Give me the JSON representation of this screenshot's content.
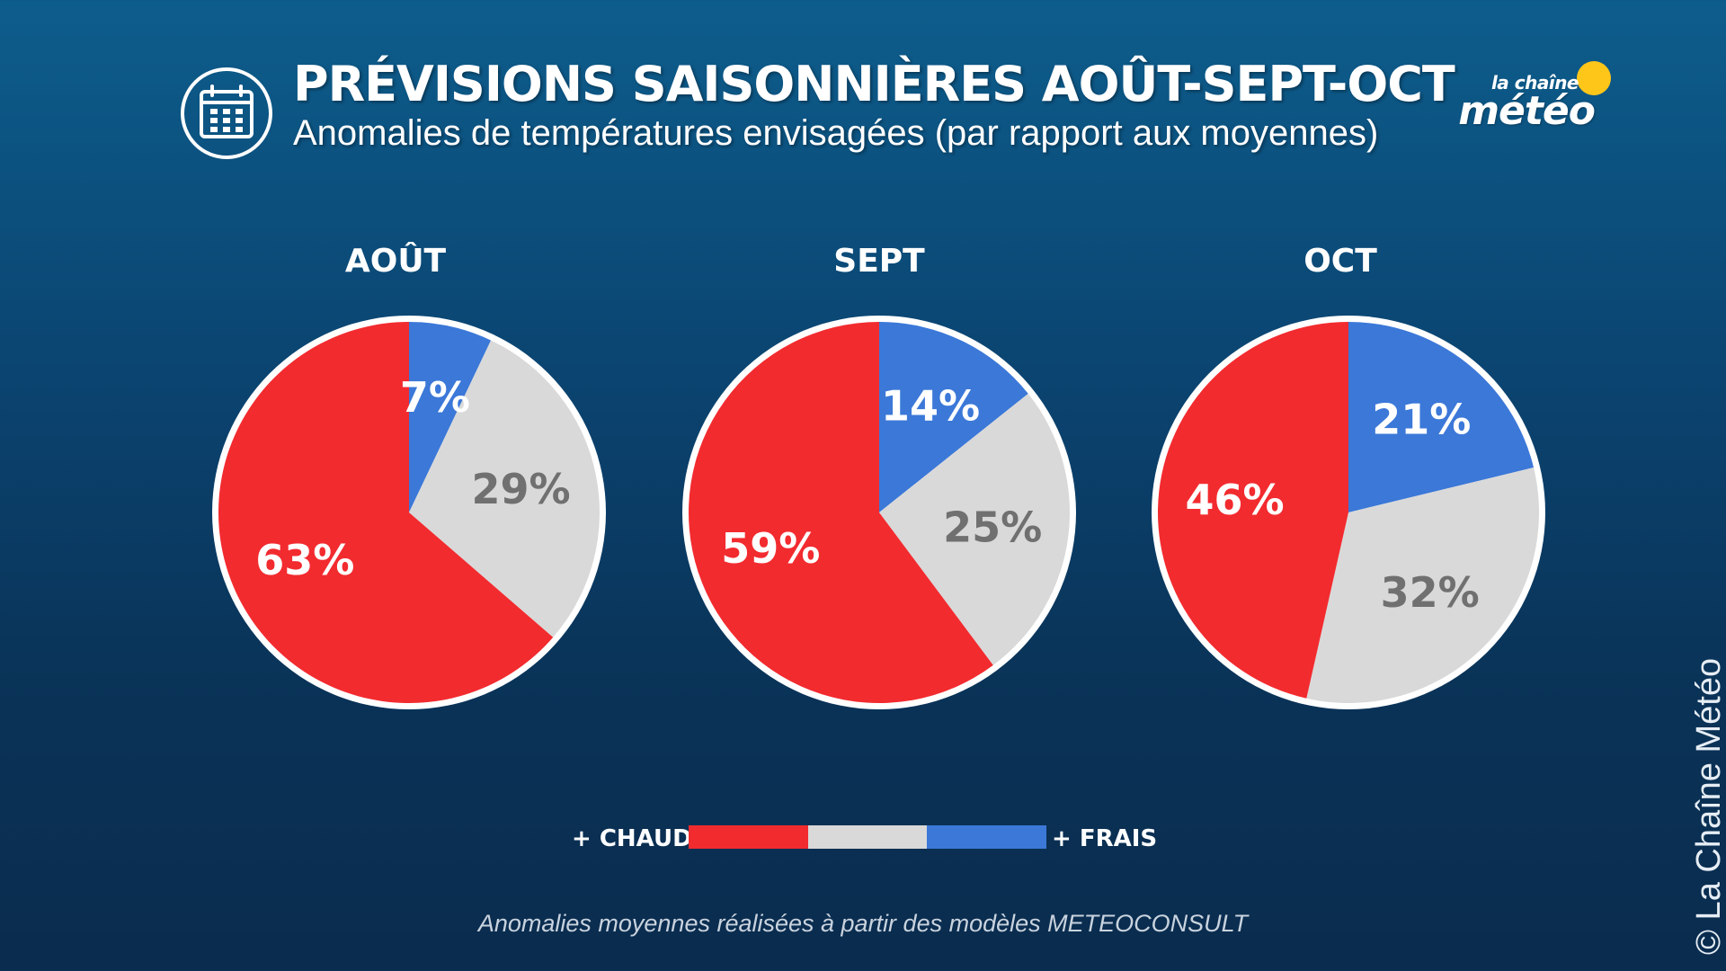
{
  "header": {
    "icon": "calendar-icon",
    "title": "PRÉVISIONS SAISONNIÈRES AOÛT-SEPT-OCT",
    "subtitle": "Anomalies de températures envisagées (par rapport aux moyennes)"
  },
  "logo": {
    "line1": "la chaîne",
    "line2": "météo"
  },
  "colors": {
    "chaud": "#f22b2f",
    "normal": "#d9d9d9",
    "frais": "#3b78d8",
    "normal_text": "#707070"
  },
  "chart_data": [
    {
      "type": "pie",
      "title": "AOÛT",
      "labels": [
        "+ FRAIS",
        "",
        "+ CHAUD"
      ],
      "values": [
        7,
        29,
        63
      ],
      "value_labels": [
        "7%",
        "29%",
        "63%"
      ]
    },
    {
      "type": "pie",
      "title": "SEPT",
      "labels": [
        "+ FRAIS",
        "",
        "+ CHAUD"
      ],
      "values": [
        14,
        25,
        59
      ],
      "value_labels": [
        "14%",
        "25%",
        "59%"
      ]
    },
    {
      "type": "pie",
      "title": "OCT",
      "labels": [
        "+ FRAIS",
        "",
        "+ CHAUD"
      ],
      "values": [
        21,
        32,
        46
      ],
      "value_labels": [
        "21%",
        "32%",
        "46%"
      ]
    }
  ],
  "legend": {
    "left_label": "+ CHAUD",
    "right_label": "+ FRAIS"
  },
  "footnote": "Anomalies moyennes réalisées à partir des modèles METEOCONSULT",
  "copyright": "© La Chaîne Météo"
}
